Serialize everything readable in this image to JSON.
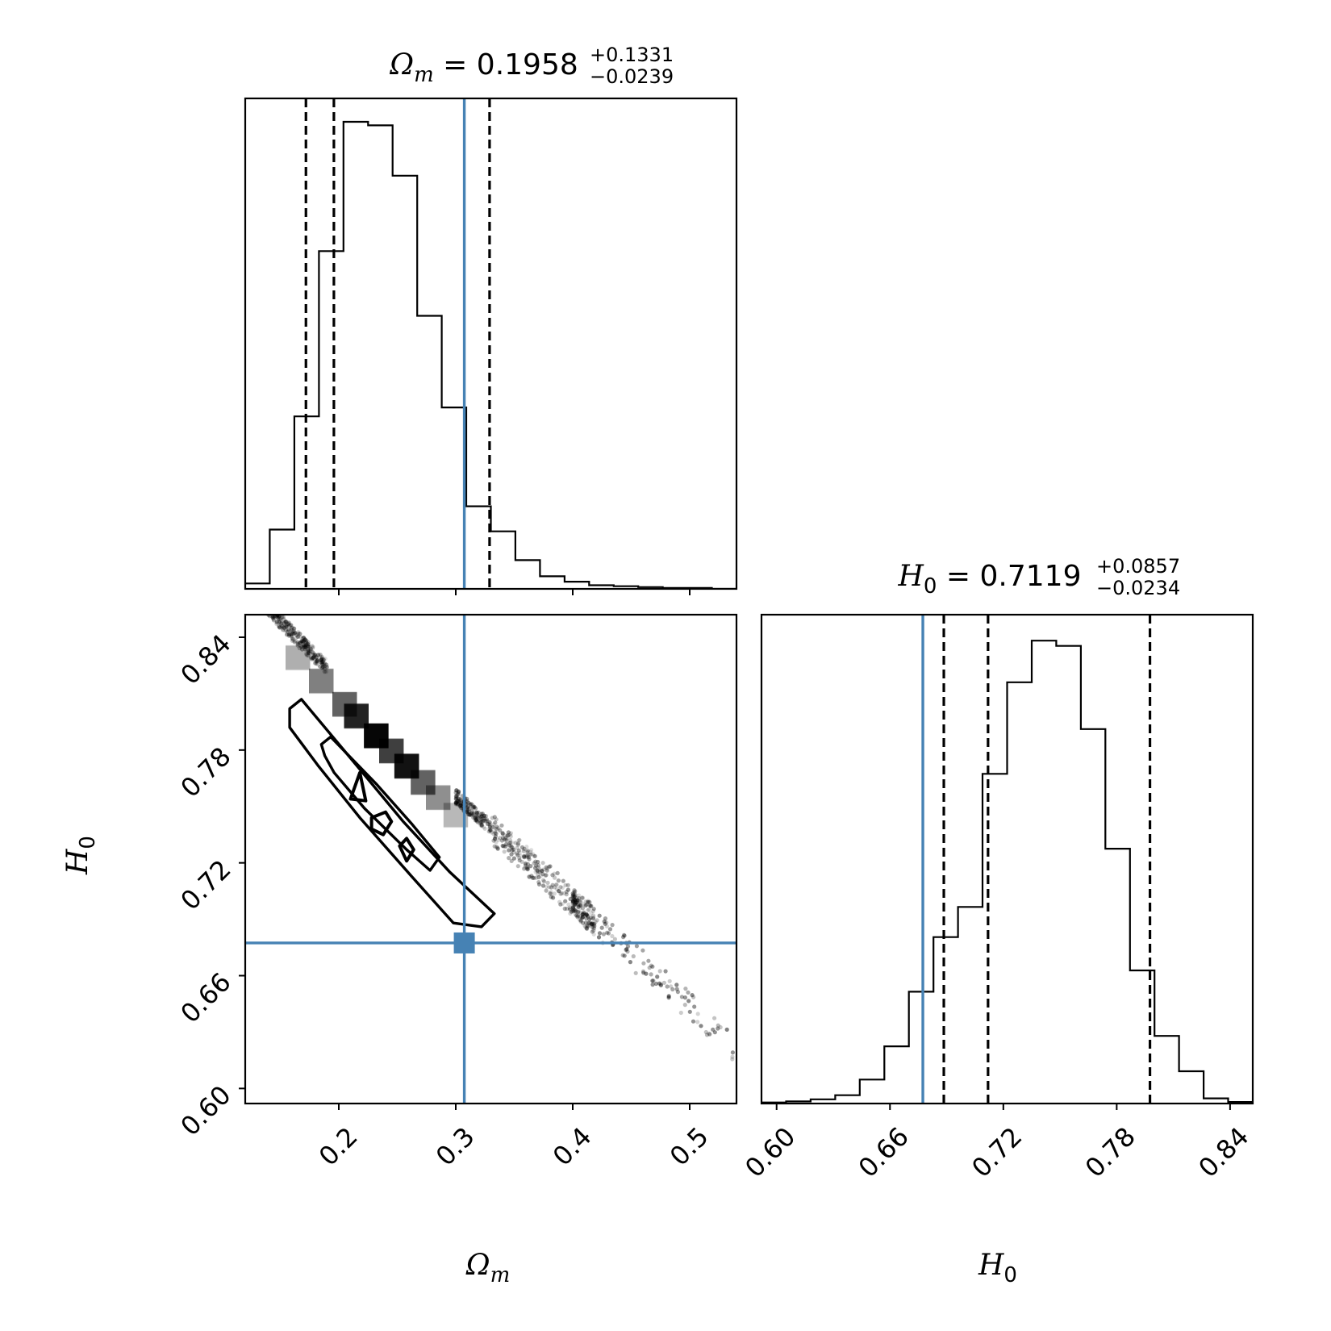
{
  "chart_data": {
    "type": "corner",
    "parameters": [
      {
        "key": "omega_m",
        "symbol": "Ω",
        "subscript": "m",
        "subscript_italic": true,
        "value": "0.1958",
        "upper": "+0.1331",
        "lower": "−0.0239",
        "truth": 0.3073
      },
      {
        "key": "h0",
        "symbol": "H",
        "subscript": "0",
        "subscript_italic": false,
        "value": "0.7119",
        "upper": "+0.0857",
        "lower": "−0.0234",
        "truth": 0.6774
      }
    ],
    "panels": [
      {
        "id": "hist-omega-m",
        "type": "histogram",
        "parameter": "omega_m",
        "xlim": [
          0.12,
          0.54
        ],
        "bin_edges": [
          0.12,
          0.141,
          0.162,
          0.183,
          0.204,
          0.225,
          0.246,
          0.267,
          0.288,
          0.309,
          0.33,
          0.351,
          0.372,
          0.393,
          0.414,
          0.435,
          0.456,
          0.477,
          0.498,
          0.519,
          0.54
        ],
        "counts": [
          6,
          66,
          192,
          376,
          520,
          516,
          460,
          304,
          202,
          92,
          64,
          32,
          14,
          8,
          4,
          3,
          2,
          1,
          1,
          0
        ],
        "ylim": [
          0,
          546
        ],
        "quantile_lines": [
          0.1719,
          0.1958,
          0.3289
        ],
        "truth_line": 0.3073,
        "xticks": [
          0.2,
          0.3,
          0.4,
          0.5
        ]
      },
      {
        "id": "hist-h0",
        "type": "histogram",
        "parameter": "h0",
        "xlim": [
          0.592,
          0.852
        ],
        "bin_edges": [
          0.592,
          0.605,
          0.618,
          0.631,
          0.644,
          0.657,
          0.67,
          0.683,
          0.696,
          0.709,
          0.722,
          0.735,
          0.748,
          0.761,
          0.774,
          0.787,
          0.8,
          0.813,
          0.826,
          0.839,
          0.852
        ],
        "counts": [
          2,
          4,
          8,
          16,
          46,
          110,
          215,
          320,
          378,
          634,
          810,
          890,
          880,
          720,
          490,
          256,
          130,
          62,
          10,
          3
        ],
        "ylim": [
          0,
          940
        ],
        "quantile_lines": [
          0.6885,
          0.7119,
          0.7976
        ],
        "truth_line": 0.6774,
        "xticks": [
          0.6,
          0.66,
          0.72,
          0.78,
          0.84
        ]
      },
      {
        "id": "joint-omega-m-h0",
        "type": "2d-density",
        "x": "omega_m",
        "y": "h0",
        "xlim": [
          0.12,
          0.54
        ],
        "ylim": [
          0.592,
          0.852
        ],
        "xticks": [
          0.2,
          0.3,
          0.4,
          0.5
        ],
        "yticks": [
          0.6,
          0.66,
          0.72,
          0.78,
          0.84
        ],
        "truth_point": [
          0.3073,
          0.6774
        ],
        "contours": [
          [
            [
              0.158,
              0.802
            ],
            [
              0.168,
              0.807
            ],
            [
              0.215,
              0.772
            ],
            [
              0.255,
              0.742
            ],
            [
              0.295,
              0.715
            ],
            [
              0.333,
              0.693
            ],
            [
              0.322,
              0.686
            ],
            [
              0.298,
              0.688
            ],
            [
              0.262,
              0.713
            ],
            [
              0.218,
              0.744
            ],
            [
              0.182,
              0.772
            ],
            [
              0.158,
              0.792
            ]
          ],
          [
            [
              0.185,
              0.783
            ],
            [
              0.193,
              0.787
            ],
            [
              0.232,
              0.762
            ],
            [
              0.262,
              0.741
            ],
            [
              0.286,
              0.723
            ],
            [
              0.278,
              0.716
            ],
            [
              0.258,
              0.727
            ],
            [
              0.222,
              0.749
            ],
            [
              0.196,
              0.768
            ],
            [
              0.188,
              0.777
            ]
          ],
          [
            [
              0.21,
              0.754
            ],
            [
              0.223,
              0.753
            ],
            [
              0.218,
              0.768
            ]
          ],
          [
            [
              0.228,
              0.744
            ],
            [
              0.24,
              0.747
            ],
            [
              0.245,
              0.742
            ],
            [
              0.238,
              0.735
            ],
            [
              0.228,
              0.738
            ]
          ],
          [
            [
              0.252,
              0.729
            ],
            [
              0.258,
              0.733
            ],
            [
              0.264,
              0.727
            ],
            [
              0.258,
              0.721
            ]
          ]
        ]
      }
    ],
    "contour_levels": [
      "0.5-sigma",
      "1-sigma",
      "1.5-sigma",
      "2-sigma"
    ]
  },
  "colors": {
    "truth": "#4682b4",
    "hist": "#000000",
    "points": "#000000",
    "contour_fill": "#000000"
  }
}
